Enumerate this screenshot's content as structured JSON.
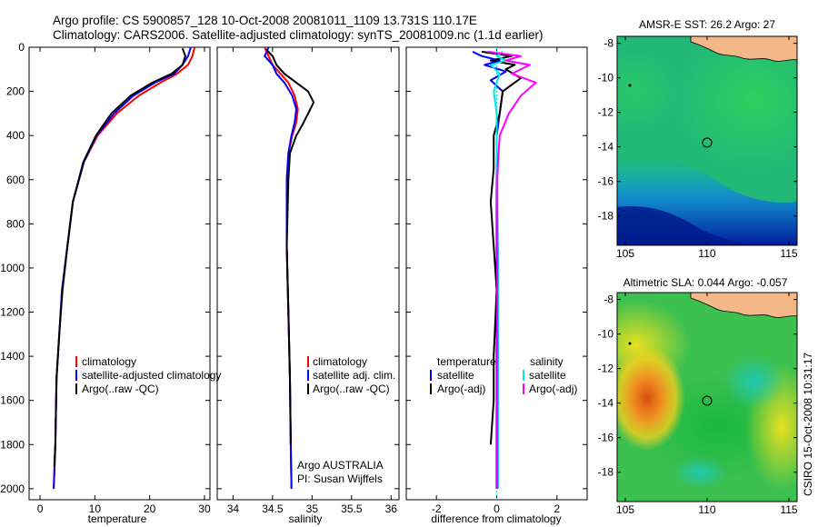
{
  "title_line1": "Argo profile: CS 5900857_128 10-Oct-2008 20081011_1109 13.731S 110.17E",
  "title_line2": "Climatology: CARS2006. Satellite-adjusted climatology: synTS_20081009.nc (1.1d earlier)",
  "colors": {
    "red": "#ff0000",
    "blue": "#0000ff",
    "black": "#000000",
    "cyan": "#00e5e5",
    "magenta": "#ff00ff",
    "land": "#f4b888"
  },
  "chart_data": [
    {
      "type": "line",
      "name": "temperature",
      "xlabel": "temperature",
      "xlim": [
        -2,
        31
      ],
      "ylim": [
        2050,
        0
      ],
      "xticks": [
        "0",
        "10",
        "20",
        "30"
      ],
      "xtick_values": [
        0,
        10,
        20,
        30
      ],
      "yticks": [
        "0",
        "200",
        "400",
        "600",
        "800",
        "1000",
        "1200",
        "1400",
        "1600",
        "1800",
        "2000"
      ],
      "ytick_values": [
        0,
        200,
        400,
        600,
        800,
        1000,
        1200,
        1400,
        1600,
        1800,
        2000
      ],
      "legend": [
        "climatology",
        "satellite-adjusted climatology",
        "Argo(..raw -QC)"
      ],
      "series": [
        {
          "name": "climatology",
          "color": "red",
          "x": [
            28.2,
            27.8,
            27,
            25,
            22,
            18,
            14,
            10.5,
            8,
            6,
            5,
            4,
            3.5,
            3,
            2.8,
            2.5
          ],
          "y": [
            0,
            40,
            80,
            120,
            160,
            220,
            300,
            400,
            520,
            700,
            900,
            1100,
            1300,
            1500,
            1800,
            2000
          ]
        },
        {
          "name": "satellite-adjusted climatology",
          "color": "blue",
          "x": [
            27.5,
            27,
            26,
            24.5,
            21,
            17,
            13.5,
            10.3,
            8,
            6,
            5,
            4,
            3.5,
            3,
            2.8,
            2.5
          ],
          "y": [
            0,
            40,
            80,
            120,
            160,
            220,
            300,
            400,
            520,
            700,
            900,
            1100,
            1300,
            1500,
            1800,
            2000
          ]
        },
        {
          "name": "Argo(..raw -QC)",
          "color": "black",
          "x": [
            26,
            26.5,
            26,
            24,
            20.5,
            16.5,
            13,
            10.2,
            7.9,
            6,
            5,
            4.1,
            3.5,
            3,
            2.8,
            2.6
          ],
          "y": [
            5,
            40,
            80,
            120,
            160,
            220,
            300,
            400,
            520,
            700,
            900,
            1100,
            1300,
            1500,
            1800,
            1900
          ]
        }
      ]
    },
    {
      "type": "line",
      "name": "salinity",
      "xlabel": "salinity",
      "xlim": [
        33.8,
        36.1
      ],
      "ylim": [
        2050,
        0
      ],
      "xticks": [
        "34",
        "34.5",
        "35",
        "35.5",
        "36"
      ],
      "xtick_values": [
        34,
        34.5,
        35,
        35.5,
        36
      ],
      "legend": [
        "climatology",
        "satellite adj. clim.",
        "Argo(..raw -QC)"
      ],
      "annotations": [
        "Argo AUSTRALIA",
        "PI: Susan Wijffels"
      ],
      "series": [
        {
          "name": "climatology",
          "color": "red",
          "x": [
            34.4,
            34.45,
            34.5,
            34.6,
            34.7,
            34.78,
            34.82,
            34.8,
            34.75,
            34.7,
            34.68,
            34.68,
            34.7,
            34.72,
            34.73,
            34.74
          ],
          "y": [
            0,
            40,
            80,
            120,
            160,
            220,
            280,
            340,
            400,
            480,
            600,
            900,
            1200,
            1500,
            1800,
            2000
          ]
        },
        {
          "name": "satellite adj. clim.",
          "color": "blue",
          "x": [
            34.45,
            34.4,
            34.5,
            34.55,
            34.65,
            34.75,
            34.8,
            34.78,
            34.74,
            34.7,
            34.68,
            34.68,
            34.7,
            34.72,
            34.73,
            34.74
          ],
          "y": [
            0,
            40,
            80,
            120,
            160,
            220,
            280,
            340,
            400,
            480,
            600,
            900,
            1200,
            1500,
            1800,
            2000
          ]
        },
        {
          "name": "Argo(..raw -QC)",
          "color": "black",
          "x": [
            34.42,
            34.5,
            34.55,
            34.65,
            34.8,
            34.95,
            35.02,
            34.95,
            34.88,
            34.8,
            34.72,
            34.7,
            34.68,
            34.7,
            34.72,
            34.73
          ],
          "y": [
            10,
            40,
            80,
            120,
            160,
            200,
            250,
            300,
            350,
            400,
            480,
            600,
            900,
            1200,
            1500,
            1800
          ]
        }
      ]
    },
    {
      "type": "line",
      "name": "difference",
      "xlabel": "difference from climatology",
      "xlim": [
        -3,
        3
      ],
      "ylim": [
        2050,
        0
      ],
      "xticks": [
        "-2",
        "0",
        "2"
      ],
      "xtick_values": [
        -2,
        0,
        2
      ],
      "legend_left_title": "temperature",
      "legend_right_title": "salinity",
      "legend": [
        "satellite",
        "Argo(-adj)",
        "satellite",
        "Argo(-adj)"
      ],
      "series": [
        {
          "name": "temperature satellite",
          "color": "blue",
          "x": [
            -0.8,
            -0.5,
            0.1,
            -0.4,
            0.3,
            -0.2,
            0.2,
            0.1,
            0,
            0
          ],
          "y": [
            20,
            40,
            60,
            80,
            110,
            150,
            200,
            300,
            400,
            2000
          ]
        },
        {
          "name": "temperature Argo(-adj)",
          "color": "black",
          "x": [
            -0.5,
            0.5,
            -0.2,
            0.6,
            0.3,
            0.8,
            0.2,
            0.1,
            -0.1,
            -0.1,
            -0.2,
            -0.1,
            0,
            -0.1,
            -0.1,
            -0.2
          ],
          "y": [
            20,
            40,
            60,
            80,
            100,
            140,
            200,
            300,
            400,
            550,
            700,
            900,
            1100,
            1400,
            1600,
            1800
          ]
        },
        {
          "name": "salinity satellite",
          "color": "cyan",
          "x": [
            0.2,
            0,
            0.3,
            -0.2,
            0.1,
            -0.1,
            0,
            0,
            0.05,
            0.05
          ],
          "y": [
            20,
            40,
            60,
            80,
            120,
            200,
            300,
            500,
            1000,
            2000
          ]
        },
        {
          "name": "salinity Argo(-adj)",
          "color": "magenta",
          "x": [
            -0.3,
            0.8,
            0.3,
            1.1,
            0.5,
            1.3,
            0.8,
            0.4,
            0.1,
            0.05,
            0.02,
            0.02
          ],
          "y": [
            20,
            40,
            60,
            80,
            120,
            160,
            220,
            300,
            400,
            500,
            600,
            2000
          ]
        }
      ]
    },
    {
      "type": "heatmap",
      "name": "sst-map",
      "title": "AMSR-E SST: 26.2 Argo: 27",
      "xlim": [
        104.5,
        115.5
      ],
      "ylim": [
        -19.7,
        -7.6
      ],
      "xticks": [
        "105",
        "110",
        "115"
      ],
      "xtick_values": [
        105,
        110,
        115
      ],
      "yticks": [
        "-8",
        "-10",
        "-12",
        "-14",
        "-16",
        "-18"
      ],
      "ytick_values": [
        -8,
        -10,
        -12,
        -14,
        -16,
        -18
      ],
      "profile_position": [
        110.17,
        -13.73
      ]
    },
    {
      "type": "heatmap",
      "name": "sla-map",
      "title": "Altimetric SLA: 0.044 Argo: -0.057",
      "xlim": [
        104.5,
        115.5
      ],
      "ylim": [
        -19.7,
        -7.6
      ],
      "xticks": [
        "105",
        "110",
        "115"
      ],
      "xtick_values": [
        105,
        110,
        115
      ],
      "yticks": [
        "-8",
        "-10",
        "-12",
        "-14",
        "-16",
        "-18"
      ],
      "ytick_values": [
        -8,
        -10,
        -12,
        -14,
        -16,
        -18
      ],
      "profile_position": [
        110.17,
        -13.73
      ]
    }
  ],
  "side_label": "CSIRO 15-Oct-2008 10:31:17"
}
